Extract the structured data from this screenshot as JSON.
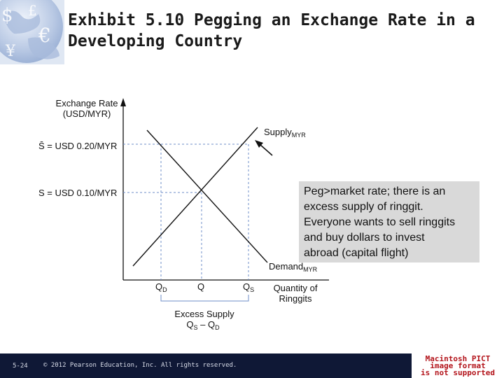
{
  "title": {
    "line1": "Exhibit 5.10  Pegging an Exchange Rate in a",
    "line2": "Developing Country"
  },
  "diagram": {
    "y_axis_label_line1": "Exchange Rate",
    "y_axis_label_line2": "(USD/MYR)",
    "peg_rate_label": "S̄ = USD 0.20/MYR",
    "market_rate_label": "S = USD 0.10/MYR",
    "supply_label": "Supply",
    "supply_subscript": "MYR",
    "demand_label": "Demand",
    "demand_subscript": "MYR",
    "x_tick_qd": "Q",
    "x_tick_qd_sub": "D",
    "x_tick_q": "Q",
    "x_tick_qs": "Q",
    "x_tick_qs_sub": "S",
    "x_axis_label_line1": "Quantity of",
    "x_axis_label_line2": "Ringgits",
    "excess_label": "Excess Supply",
    "excess_formula_q1": "Q",
    "excess_formula_s": "S",
    "excess_formula_minus": " – Q",
    "excess_formula_d": "D"
  },
  "note": {
    "line1": "Peg>market rate; there is an",
    "line2": "excess supply of ringgit.",
    "line3": "Everyone wants to sell ringgits",
    "line4": "and buy dollars to invest",
    "line5": "abroad (capital flight)"
  },
  "footer": {
    "slide_number": "5-24",
    "copyright": "© 2012 Pearson Education, Inc. All rights reserved."
  },
  "placeholder": {
    "line1": "Macintosh PICT",
    "line2": "image format",
    "line3": "is not supported"
  },
  "colors": {
    "footer_bg": "#0f1836",
    "note_bg": "#d9d9d9",
    "placeholder_text": "#b3141b",
    "guide_lines": "#6f8fc8"
  }
}
